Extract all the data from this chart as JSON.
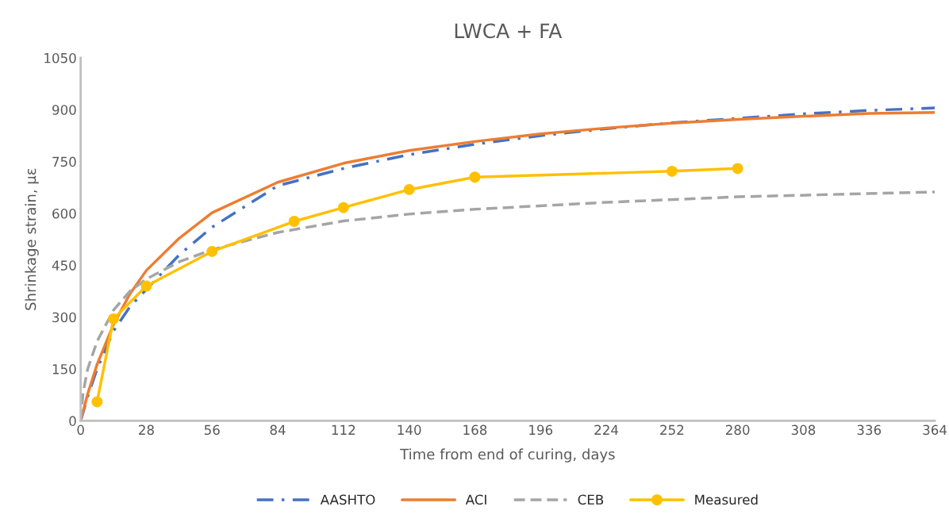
{
  "chart_data": {
    "type": "line",
    "title": "LWCA + FA",
    "xlabel": "Time from end of curing, days",
    "ylabel": "Shrinkage strain, με",
    "xlim": [
      0,
      364
    ],
    "xticks": [
      0,
      28,
      56,
      84,
      112,
      140,
      168,
      196,
      224,
      252,
      280,
      308,
      336,
      364
    ],
    "ylim": [
      0,
      1050
    ],
    "yticks": [
      0,
      150,
      300,
      450,
      600,
      750,
      900,
      1050
    ],
    "grid": false,
    "legend": "bottom",
    "series": [
      {
        "name": "AASHTO",
        "color": "#4472c4",
        "line_style": "dashdot",
        "marker": "none",
        "x": [
          0,
          3,
          7,
          14,
          21,
          28,
          42,
          56,
          84,
          112,
          140,
          168,
          196,
          224,
          252,
          280,
          308,
          336,
          364
        ],
        "values": [
          0,
          70,
          150,
          260,
          330,
          380,
          480,
          560,
          680,
          730,
          770,
          800,
          825,
          845,
          862,
          875,
          888,
          898,
          905
        ]
      },
      {
        "name": "ACI",
        "color": "#ed7d31",
        "line_style": "solid",
        "marker": "none",
        "x": [
          0,
          3,
          7,
          14,
          21,
          28,
          42,
          56,
          84,
          112,
          140,
          168,
          196,
          224,
          252,
          280,
          308,
          336,
          364
        ],
        "values": [
          0,
          78,
          163,
          279,
          367,
          435,
          528,
          602,
          690,
          745,
          782,
          808,
          830,
          847,
          861,
          872,
          881,
          889,
          892
        ]
      },
      {
        "name": "CEB",
        "color": "#a5a5a5",
        "line_style": "dashed",
        "marker": "none",
        "x": [
          0,
          1,
          3,
          7,
          14,
          21,
          28,
          42,
          56,
          84,
          112,
          140,
          168,
          224,
          280,
          364
        ],
        "values": [
          0,
          80,
          150,
          230,
          320,
          375,
          410,
          460,
          495,
          545,
          578,
          598,
          612,
          632,
          648,
          662
        ]
      },
      {
        "name": "Measured",
        "color": "#ffc000",
        "line_style": "solid",
        "marker": "circle",
        "x": [
          7,
          14,
          28,
          56,
          91,
          112,
          140,
          168,
          252,
          280
        ],
        "values": [
          55,
          295,
          390,
          490,
          577,
          617,
          669,
          705,
          722,
          730
        ]
      }
    ]
  }
}
